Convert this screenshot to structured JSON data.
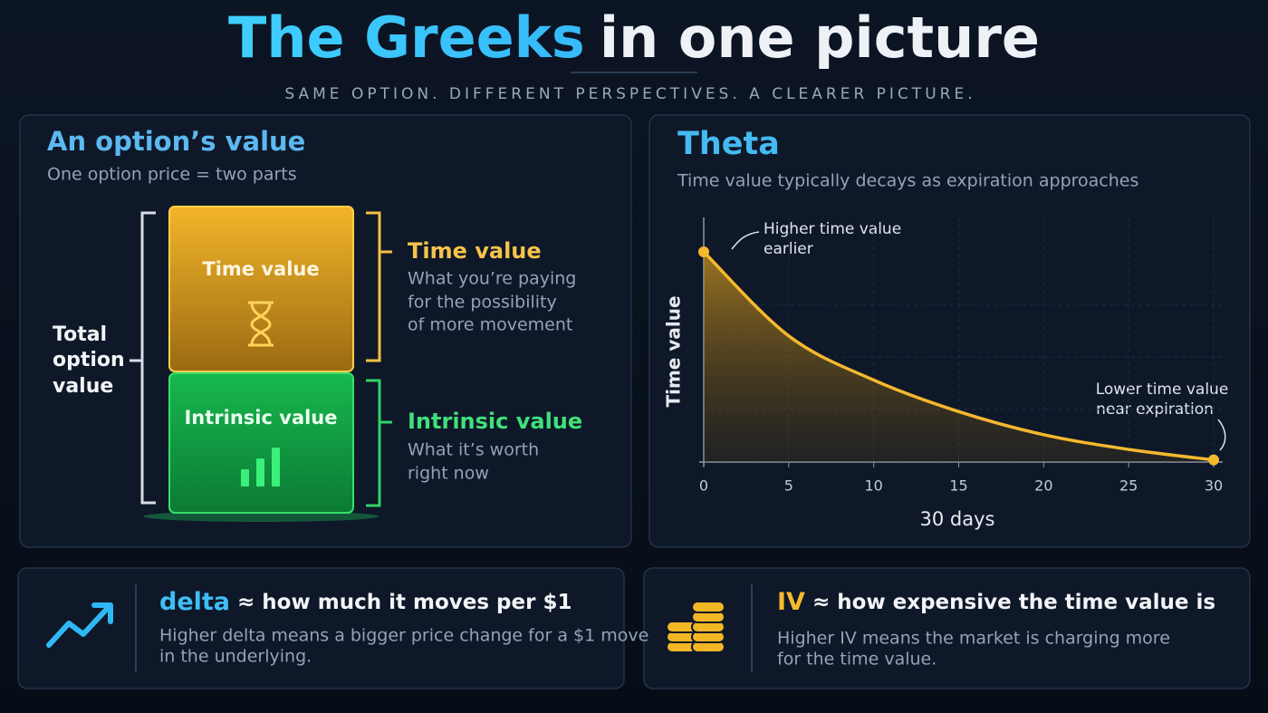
{
  "header": {
    "title_highlight": "The Greeks",
    "title_rest": "in one picture",
    "subtitle": "SAME OPTION. DIFFERENT PERSPECTIVES. A CLEARER PICTURE."
  },
  "value_panel": {
    "title": "An option’s value",
    "subtitle": "One option price = two parts",
    "total_label": [
      "Total",
      "option",
      "value"
    ],
    "time_box_label": "Time value",
    "intrinsic_box_label": "Intrinsic value",
    "time_heading": "Time value",
    "time_description": [
      "What you’re paying",
      "for the possibility",
      "of more movement"
    ],
    "intrinsic_heading": "Intrinsic value",
    "intrinsic_description": [
      "What it’s worth",
      "right now"
    ]
  },
  "chart_data": {
    "type": "area",
    "title": "Theta",
    "subtitle": "Time value typically decays as expiration approaches",
    "ylabel": "Time value",
    "xlabel": "30 days",
    "x": [
      0,
      5,
      10,
      15,
      20,
      25,
      30
    ],
    "values": [
      100,
      60,
      39,
      24,
      13,
      6,
      1
    ],
    "color": "#f5b82e",
    "xlim": [
      0,
      30
    ],
    "xticks": [
      0,
      5,
      10,
      15,
      20,
      25,
      30
    ],
    "ylim": [
      0,
      100
    ],
    "grid": true,
    "annotations": [
      {
        "lines": [
          "Higher time value",
          "earlier"
        ]
      },
      {
        "lines": [
          "Lower time value",
          "near expiration"
        ]
      }
    ]
  },
  "delta": {
    "term": "delta",
    "headline": "≈ how much it moves per $1",
    "description": [
      "Higher delta means a bigger price change for a $1 move",
      "in the underlying."
    ]
  },
  "iv": {
    "term": "IV",
    "headline": "≈ how expensive the time value is",
    "description": [
      "Higher IV means the market is charging more",
      "for the time value."
    ]
  }
}
